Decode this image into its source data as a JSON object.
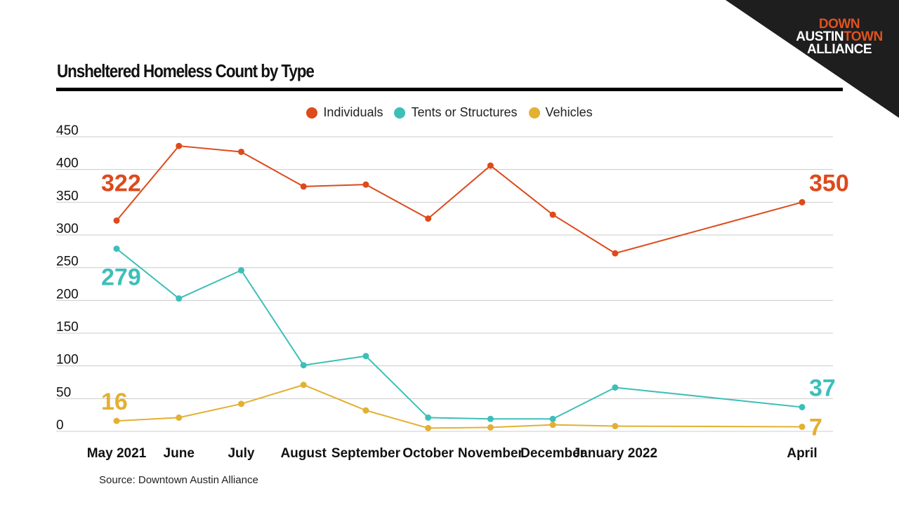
{
  "logo": {
    "line1": "DOWN",
    "line2a": "AUSTIN",
    "line2b": "TOWN",
    "line3": "ALLIANCE"
  },
  "colors": {
    "individuals": "#dd4a1b",
    "tents": "#3dbfb8",
    "vehicles": "#e3b032",
    "grid": "#cccccc",
    "corner": "#1e1e1e"
  },
  "source": "Source: Downtown Austin Alliance",
  "chart_data": {
    "type": "line",
    "title": "Unsheltered Homeless Count by Type",
    "xlabel": "",
    "ylabel": "",
    "ylim": [
      0,
      450
    ],
    "yticks": [
      0,
      50,
      100,
      150,
      200,
      250,
      300,
      350,
      400,
      450
    ],
    "grid": true,
    "legend_position": "top-center",
    "categories": [
      "May 2021",
      "June",
      "July",
      "August",
      "September",
      "October",
      "November",
      "December",
      "January 2022",
      "April"
    ],
    "x": [
      0,
      1,
      2,
      3,
      4,
      5,
      6,
      7,
      8,
      11
    ],
    "series": [
      {
        "name": "Individuals",
        "color": "#dd4a1b",
        "values": [
          322,
          436,
          427,
          374,
          377,
          325,
          406,
          331,
          272,
          350
        ],
        "start_label": "322",
        "end_label": "350"
      },
      {
        "name": "Tents or Structures",
        "color": "#3dbfb8",
        "values": [
          279,
          203,
          246,
          101,
          115,
          21,
          19,
          19,
          67,
          37
        ],
        "start_label": "279",
        "end_label": "37"
      },
      {
        "name": "Vehicles",
        "color": "#e3b032",
        "values": [
          16,
          21,
          42,
          71,
          32,
          5,
          6,
          10,
          8,
          7
        ],
        "start_label": "16",
        "end_label": "7"
      }
    ]
  }
}
